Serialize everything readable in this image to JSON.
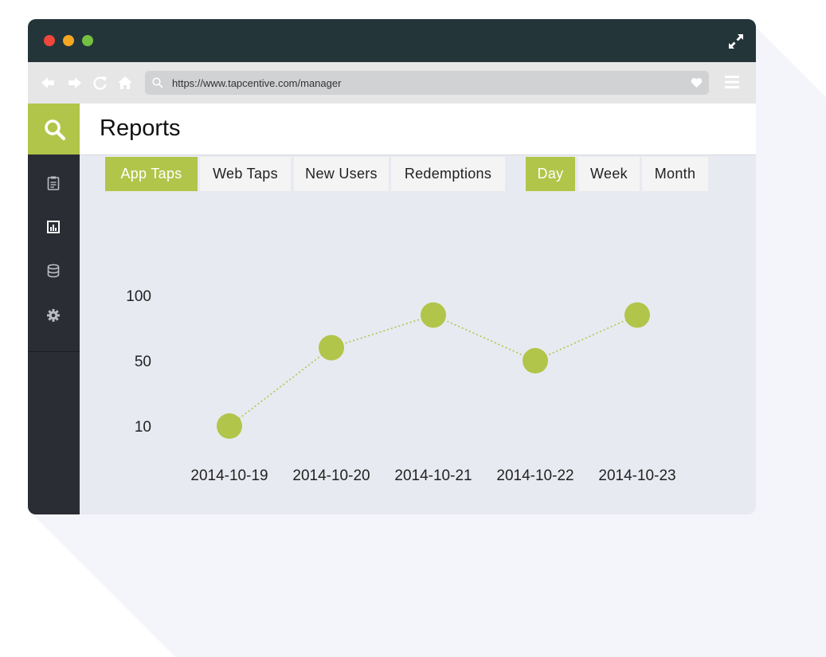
{
  "browser": {
    "url": "https://www.tapcentive.com/manager",
    "colors": {
      "titlebar": "#24353a",
      "accent": "#b1c54a",
      "sidebar": "#2a2d34"
    }
  },
  "sidebar": {
    "items": [
      {
        "icon": "clipboard-icon"
      },
      {
        "icon": "report-icon",
        "active": true
      },
      {
        "icon": "database-icon"
      },
      {
        "icon": "gear-icon"
      }
    ]
  },
  "header": {
    "title": "Reports"
  },
  "metric_tabs": [
    {
      "label": "App Taps",
      "active": true
    },
    {
      "label": "Web Taps",
      "active": false
    },
    {
      "label": "New Users",
      "active": false
    },
    {
      "label": "Redemptions",
      "active": false
    }
  ],
  "period_tabs": [
    {
      "label": "Day",
      "active": true
    },
    {
      "label": "Week",
      "active": false
    },
    {
      "label": "Month",
      "active": false
    }
  ],
  "chart_data": {
    "type": "line",
    "categories": [
      "2014-10-19",
      "2014-10-20",
      "2014-10-21",
      "2014-10-22",
      "2014-10-23"
    ],
    "series": [
      {
        "values": [
          10,
          60,
          85,
          50,
          85
        ]
      }
    ],
    "yticks": [
      10,
      50,
      100
    ],
    "ylim": [
      10,
      100
    ],
    "title": "",
    "xlabel": "",
    "ylabel": "",
    "line_style": "dotted",
    "color": "#b1c54a",
    "grid": false
  }
}
